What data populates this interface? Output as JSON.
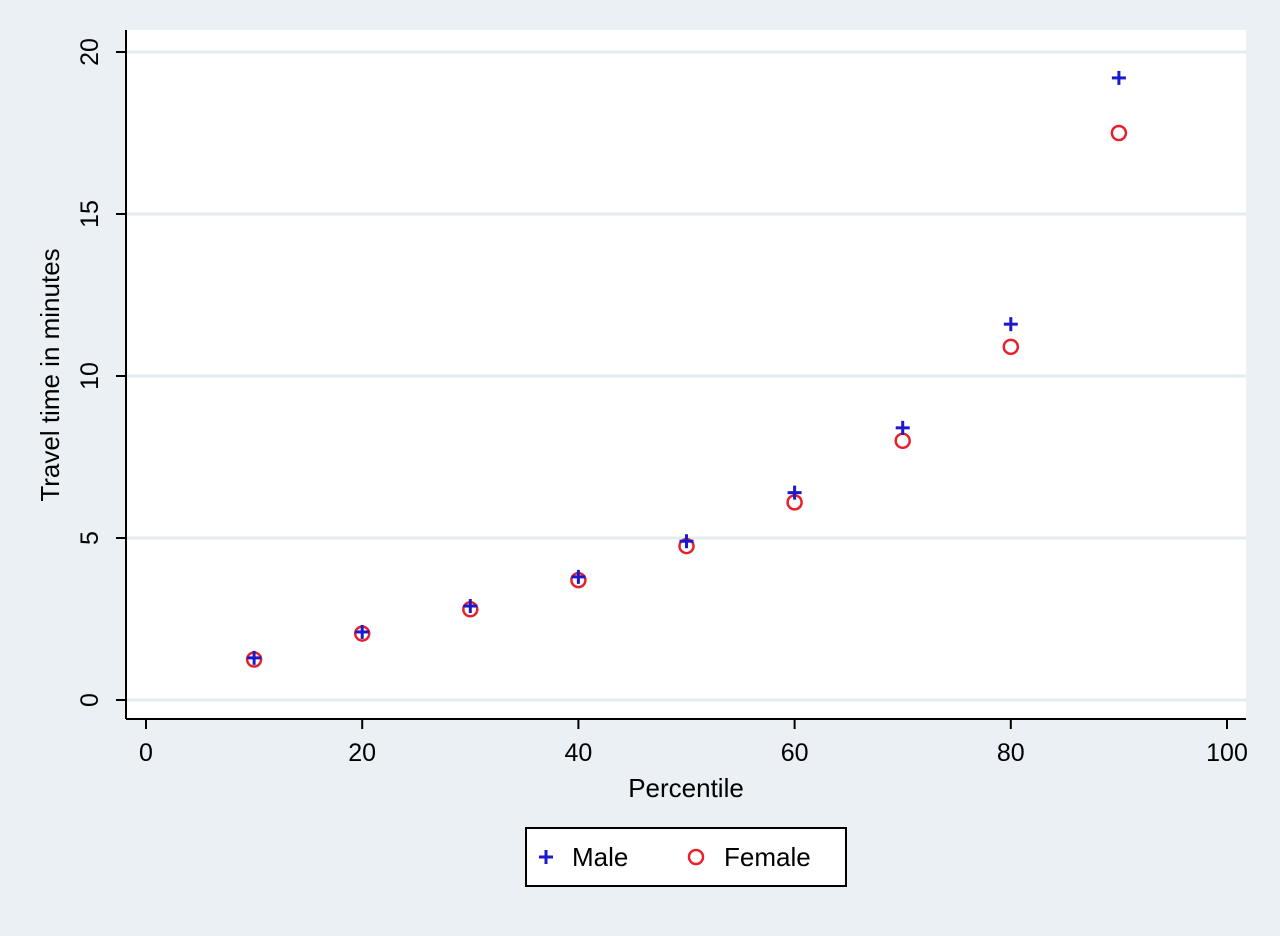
{
  "chart_data": {
    "type": "scatter",
    "title": "",
    "xlabel": "Percentile",
    "ylabel": "Travel time in minutes",
    "xlim": [
      0,
      100
    ],
    "ylim": [
      0,
      20
    ],
    "xticks": [
      0,
      20,
      40,
      60,
      80,
      100
    ],
    "yticks": [
      0,
      5,
      10,
      15,
      20
    ],
    "grid": "horizontal",
    "legend_position": "bottom",
    "series": [
      {
        "name": "Male",
        "marker": "plus",
        "color": "#1a1acc",
        "x": [
          10,
          20,
          30,
          40,
          50,
          60,
          70,
          80,
          90
        ],
        "y": [
          1.3,
          2.1,
          2.9,
          3.8,
          4.9,
          6.4,
          8.4,
          11.6,
          19.2
        ]
      },
      {
        "name": "Female",
        "marker": "circle",
        "color": "#e8202a",
        "x": [
          10,
          20,
          30,
          40,
          50,
          60,
          70,
          80,
          90
        ],
        "y": [
          1.25,
          2.05,
          2.8,
          3.7,
          4.75,
          6.1,
          8.0,
          10.9,
          17.5
        ]
      }
    ]
  }
}
